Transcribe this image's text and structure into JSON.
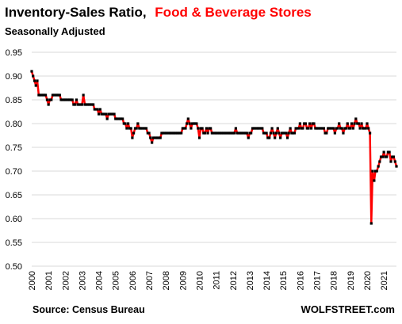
{
  "chart_data": {
    "type": "line",
    "title": "Inventory-Sales Ratio,",
    "title_highlight": "Food & Beverage Stores",
    "subtitle": "Seasonally Adjusted",
    "source": "Source: Census Bureau",
    "watermark": "WOLFSTREET.com",
    "xlabel": "",
    "ylabel": "",
    "xlim": [
      2000,
      2021.75
    ],
    "ylim": [
      0.5,
      0.95
    ],
    "grid": true,
    "colors": {
      "line": "#ff0000",
      "marker": "#000000",
      "title_highlight": "#ff0000",
      "grid": "#d9d9d9"
    },
    "y_ticks": [
      "0.50",
      "0.55",
      "0.60",
      "0.65",
      "0.70",
      "0.75",
      "0.80",
      "0.85",
      "0.90",
      "0.95"
    ],
    "x_ticks": [
      "2000",
      "2001",
      "2002",
      "2003",
      "2004",
      "2005",
      "2006",
      "2007",
      "2008",
      "2009",
      "2010",
      "2011",
      "2012",
      "2013",
      "2014",
      "2015",
      "2016",
      "2017",
      "2018",
      "2019",
      "2020",
      "2021"
    ],
    "series": [
      {
        "points": [
          [
            2000.0,
            0.91
          ],
          [
            2000.08,
            0.9
          ],
          [
            2000.17,
            0.89
          ],
          [
            2000.25,
            0.88
          ],
          [
            2000.33,
            0.89
          ],
          [
            2000.42,
            0.86
          ],
          [
            2000.5,
            0.86
          ],
          [
            2000.58,
            0.86
          ],
          [
            2000.67,
            0.86
          ],
          [
            2000.75,
            0.86
          ],
          [
            2000.83,
            0.86
          ],
          [
            2000.92,
            0.85
          ],
          [
            2001.0,
            0.84
          ],
          [
            2001.08,
            0.85
          ],
          [
            2001.17,
            0.85
          ],
          [
            2001.25,
            0.86
          ],
          [
            2001.33,
            0.86
          ],
          [
            2001.42,
            0.86
          ],
          [
            2001.5,
            0.86
          ],
          [
            2001.58,
            0.86
          ],
          [
            2001.67,
            0.86
          ],
          [
            2001.75,
            0.85
          ],
          [
            2001.83,
            0.85
          ],
          [
            2001.92,
            0.85
          ],
          [
            2002.0,
            0.85
          ],
          [
            2002.08,
            0.85
          ],
          [
            2002.17,
            0.85
          ],
          [
            2002.25,
            0.85
          ],
          [
            2002.33,
            0.85
          ],
          [
            2002.42,
            0.85
          ],
          [
            2002.5,
            0.84
          ],
          [
            2002.58,
            0.84
          ],
          [
            2002.67,
            0.85
          ],
          [
            2002.75,
            0.84
          ],
          [
            2002.83,
            0.84
          ],
          [
            2002.92,
            0.84
          ],
          [
            2003.0,
            0.84
          ],
          [
            2003.08,
            0.86
          ],
          [
            2003.17,
            0.84
          ],
          [
            2003.25,
            0.84
          ],
          [
            2003.33,
            0.84
          ],
          [
            2003.42,
            0.84
          ],
          [
            2003.5,
            0.84
          ],
          [
            2003.58,
            0.84
          ],
          [
            2003.67,
            0.84
          ],
          [
            2003.75,
            0.83
          ],
          [
            2003.83,
            0.83
          ],
          [
            2003.92,
            0.83
          ],
          [
            2004.0,
            0.82
          ],
          [
            2004.08,
            0.83
          ],
          [
            2004.17,
            0.82
          ],
          [
            2004.25,
            0.82
          ],
          [
            2004.33,
            0.82
          ],
          [
            2004.42,
            0.82
          ],
          [
            2004.5,
            0.81
          ],
          [
            2004.58,
            0.82
          ],
          [
            2004.67,
            0.82
          ],
          [
            2004.75,
            0.82
          ],
          [
            2004.83,
            0.82
          ],
          [
            2004.92,
            0.82
          ],
          [
            2005.0,
            0.81
          ],
          [
            2005.08,
            0.81
          ],
          [
            2005.17,
            0.81
          ],
          [
            2005.25,
            0.81
          ],
          [
            2005.33,
            0.81
          ],
          [
            2005.42,
            0.81
          ],
          [
            2005.5,
            0.8
          ],
          [
            2005.58,
            0.8
          ],
          [
            2005.67,
            0.79
          ],
          [
            2005.75,
            0.8
          ],
          [
            2005.83,
            0.79
          ],
          [
            2005.92,
            0.79
          ],
          [
            2006.0,
            0.77
          ],
          [
            2006.08,
            0.78
          ],
          [
            2006.17,
            0.79
          ],
          [
            2006.25,
            0.79
          ],
          [
            2006.33,
            0.8
          ],
          [
            2006.42,
            0.79
          ],
          [
            2006.5,
            0.79
          ],
          [
            2006.58,
            0.79
          ],
          [
            2006.67,
            0.79
          ],
          [
            2006.75,
            0.79
          ],
          [
            2006.83,
            0.79
          ],
          [
            2006.92,
            0.78
          ],
          [
            2007.0,
            0.78
          ],
          [
            2007.08,
            0.77
          ],
          [
            2007.17,
            0.76
          ],
          [
            2007.25,
            0.77
          ],
          [
            2007.33,
            0.77
          ],
          [
            2007.42,
            0.77
          ],
          [
            2007.5,
            0.77
          ],
          [
            2007.58,
            0.77
          ],
          [
            2007.67,
            0.77
          ],
          [
            2007.75,
            0.78
          ],
          [
            2007.83,
            0.78
          ],
          [
            2007.92,
            0.78
          ],
          [
            2008.0,
            0.78
          ],
          [
            2008.08,
            0.78
          ],
          [
            2008.17,
            0.78
          ],
          [
            2008.25,
            0.78
          ],
          [
            2008.33,
            0.78
          ],
          [
            2008.42,
            0.78
          ],
          [
            2008.5,
            0.78
          ],
          [
            2008.58,
            0.78
          ],
          [
            2008.67,
            0.78
          ],
          [
            2008.75,
            0.78
          ],
          [
            2008.83,
            0.78
          ],
          [
            2008.92,
            0.78
          ],
          [
            2009.0,
            0.79
          ],
          [
            2009.08,
            0.79
          ],
          [
            2009.17,
            0.79
          ],
          [
            2009.25,
            0.8
          ],
          [
            2009.33,
            0.81
          ],
          [
            2009.42,
            0.8
          ],
          [
            2009.5,
            0.79
          ],
          [
            2009.58,
            0.8
          ],
          [
            2009.67,
            0.8
          ],
          [
            2009.75,
            0.8
          ],
          [
            2009.83,
            0.8
          ],
          [
            2009.92,
            0.79
          ],
          [
            2010.0,
            0.77
          ],
          [
            2010.08,
            0.79
          ],
          [
            2010.17,
            0.79
          ],
          [
            2010.25,
            0.78
          ],
          [
            2010.33,
            0.78
          ],
          [
            2010.42,
            0.79
          ],
          [
            2010.5,
            0.78
          ],
          [
            2010.58,
            0.79
          ],
          [
            2010.67,
            0.79
          ],
          [
            2010.75,
            0.78
          ],
          [
            2010.83,
            0.78
          ],
          [
            2010.92,
            0.78
          ],
          [
            2011.0,
            0.78
          ],
          [
            2011.08,
            0.78
          ],
          [
            2011.17,
            0.78
          ],
          [
            2011.25,
            0.78
          ],
          [
            2011.33,
            0.78
          ],
          [
            2011.42,
            0.78
          ],
          [
            2011.5,
            0.78
          ],
          [
            2011.58,
            0.78
          ],
          [
            2011.67,
            0.78
          ],
          [
            2011.75,
            0.78
          ],
          [
            2011.83,
            0.78
          ],
          [
            2011.92,
            0.78
          ],
          [
            2012.0,
            0.78
          ],
          [
            2012.08,
            0.78
          ],
          [
            2012.17,
            0.79
          ],
          [
            2012.25,
            0.78
          ],
          [
            2012.33,
            0.78
          ],
          [
            2012.42,
            0.78
          ],
          [
            2012.5,
            0.78
          ],
          [
            2012.58,
            0.78
          ],
          [
            2012.67,
            0.78
          ],
          [
            2012.75,
            0.78
          ],
          [
            2012.83,
            0.78
          ],
          [
            2012.92,
            0.77
          ],
          [
            2013.0,
            0.78
          ],
          [
            2013.08,
            0.78
          ],
          [
            2013.17,
            0.79
          ],
          [
            2013.25,
            0.79
          ],
          [
            2013.33,
            0.79
          ],
          [
            2013.42,
            0.79
          ],
          [
            2013.5,
            0.79
          ],
          [
            2013.58,
            0.79
          ],
          [
            2013.67,
            0.79
          ],
          [
            2013.75,
            0.79
          ],
          [
            2013.83,
            0.78
          ],
          [
            2013.92,
            0.78
          ],
          [
            2014.0,
            0.78
          ],
          [
            2014.08,
            0.77
          ],
          [
            2014.17,
            0.77
          ],
          [
            2014.25,
            0.78
          ],
          [
            2014.33,
            0.79
          ],
          [
            2014.42,
            0.78
          ],
          [
            2014.5,
            0.77
          ],
          [
            2014.58,
            0.78
          ],
          [
            2014.67,
            0.79
          ],
          [
            2014.75,
            0.78
          ],
          [
            2014.83,
            0.77
          ],
          [
            2014.92,
            0.78
          ],
          [
            2015.0,
            0.78
          ],
          [
            2015.08,
            0.78
          ],
          [
            2015.17,
            0.78
          ],
          [
            2015.25,
            0.77
          ],
          [
            2015.33,
            0.78
          ],
          [
            2015.42,
            0.79
          ],
          [
            2015.5,
            0.78
          ],
          [
            2015.58,
            0.78
          ],
          [
            2015.67,
            0.78
          ],
          [
            2015.75,
            0.79
          ],
          [
            2015.83,
            0.79
          ],
          [
            2015.92,
            0.79
          ],
          [
            2016.0,
            0.8
          ],
          [
            2016.08,
            0.79
          ],
          [
            2016.17,
            0.79
          ],
          [
            2016.25,
            0.8
          ],
          [
            2016.33,
            0.8
          ],
          [
            2016.42,
            0.79
          ],
          [
            2016.5,
            0.79
          ],
          [
            2016.58,
            0.8
          ],
          [
            2016.67,
            0.79
          ],
          [
            2016.75,
            0.8
          ],
          [
            2016.83,
            0.8
          ],
          [
            2016.92,
            0.79
          ],
          [
            2017.0,
            0.79
          ],
          [
            2017.08,
            0.79
          ],
          [
            2017.17,
            0.79
          ],
          [
            2017.25,
            0.79
          ],
          [
            2017.33,
            0.79
          ],
          [
            2017.42,
            0.79
          ],
          [
            2017.5,
            0.78
          ],
          [
            2017.58,
            0.78
          ],
          [
            2017.67,
            0.79
          ],
          [
            2017.75,
            0.79
          ],
          [
            2017.83,
            0.79
          ],
          [
            2017.92,
            0.79
          ],
          [
            2018.0,
            0.79
          ],
          [
            2018.08,
            0.78
          ],
          [
            2018.17,
            0.79
          ],
          [
            2018.25,
            0.79
          ],
          [
            2018.33,
            0.8
          ],
          [
            2018.42,
            0.79
          ],
          [
            2018.5,
            0.79
          ],
          [
            2018.58,
            0.78
          ],
          [
            2018.67,
            0.79
          ],
          [
            2018.75,
            0.79
          ],
          [
            2018.83,
            0.8
          ],
          [
            2018.92,
            0.79
          ],
          [
            2019.0,
            0.79
          ],
          [
            2019.08,
            0.8
          ],
          [
            2019.17,
            0.79
          ],
          [
            2019.25,
            0.8
          ],
          [
            2019.33,
            0.81
          ],
          [
            2019.42,
            0.8
          ],
          [
            2019.5,
            0.8
          ],
          [
            2019.58,
            0.79
          ],
          [
            2019.67,
            0.8
          ],
          [
            2019.75,
            0.79
          ],
          [
            2019.83,
            0.79
          ],
          [
            2019.92,
            0.79
          ],
          [
            2020.0,
            0.8
          ],
          [
            2020.08,
            0.79
          ],
          [
            2020.17,
            0.78
          ],
          [
            2020.25,
            0.59
          ],
          [
            2020.33,
            0.7
          ],
          [
            2020.42,
            0.68
          ],
          [
            2020.5,
            0.7
          ],
          [
            2020.58,
            0.7
          ],
          [
            2020.67,
            0.71
          ],
          [
            2020.75,
            0.72
          ],
          [
            2020.83,
            0.73
          ],
          [
            2020.92,
            0.73
          ],
          [
            2021.0,
            0.74
          ],
          [
            2021.08,
            0.73
          ],
          [
            2021.17,
            0.73
          ],
          [
            2021.25,
            0.74
          ],
          [
            2021.33,
            0.74
          ],
          [
            2021.42,
            0.72
          ],
          [
            2021.5,
            0.73
          ],
          [
            2021.58,
            0.73
          ],
          [
            2021.67,
            0.72
          ],
          [
            2021.75,
            0.71
          ]
        ]
      }
    ]
  }
}
